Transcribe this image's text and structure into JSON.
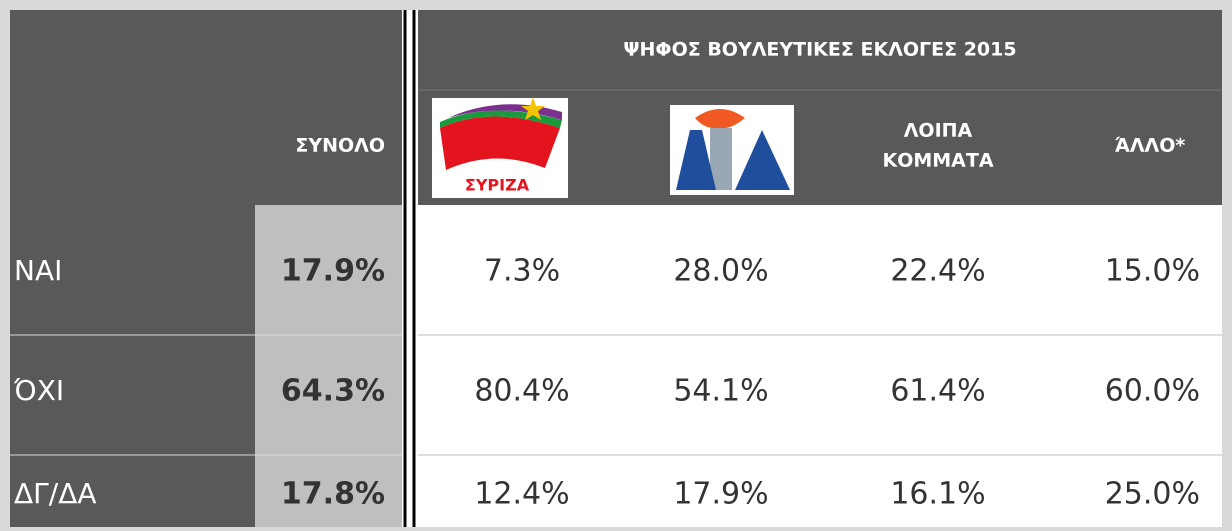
{
  "header": {
    "title": "ΨΗΦΟΣ ΒΟΥΛΕΥΤΙΚΕΣ ΕΚΛΟΓΕΣ 2015"
  },
  "columns": {
    "total": "ΣΥΝΟΛΟ",
    "syriza_logo": "ΣΥΡΙΖΑ",
    "other_parties": [
      "ΛΟΙΠΑ",
      "ΚΟΜΜΑΤΑ"
    ],
    "other": "ΆΛΛΟ*"
  },
  "rows": [
    {
      "label": "ΝΑΙ",
      "values": [
        "17.9%",
        "7.3%",
        "28.0%",
        "22.4%",
        "15.0%"
      ]
    },
    {
      "label": "ΌΧΙ",
      "values": [
        "64.3%",
        "80.4%",
        "54.1%",
        "61.4%",
        "60.0%"
      ]
    },
    {
      "label": "ΔΓ/ΔΑ",
      "values": [
        "17.8%",
        "12.4%",
        "17.9%",
        "16.1%",
        "25.0%"
      ]
    }
  ]
}
